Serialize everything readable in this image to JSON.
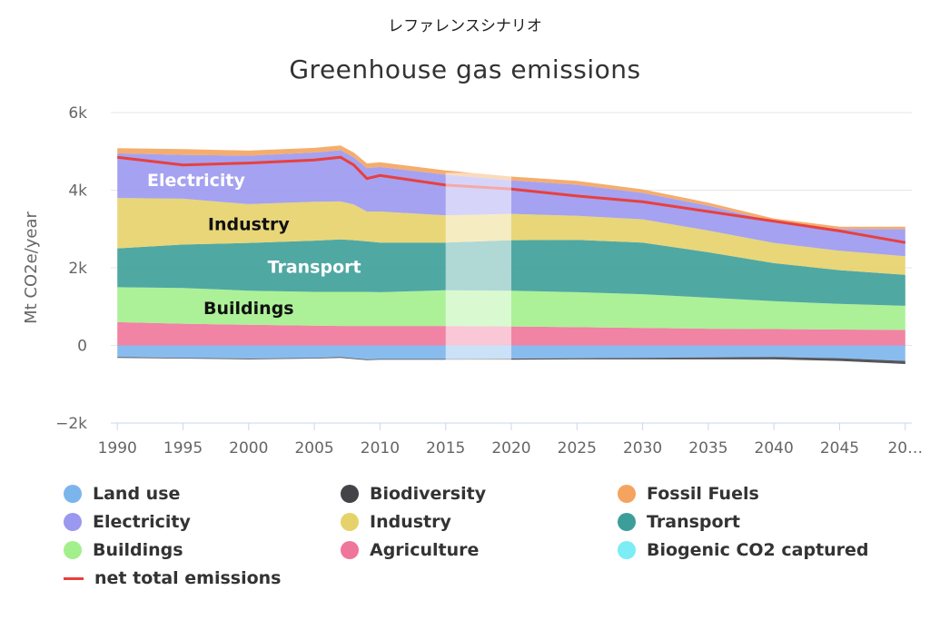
{
  "top_note": "レファレンスシナリオ",
  "chart_data": {
    "type": "area",
    "title": "Greenhouse gas emissions",
    "ylabel": "Mt CO2e/year",
    "ylim": [
      -2000,
      6000
    ],
    "y_ticks": [
      "−2k",
      "0",
      "2k",
      "4k",
      "6k"
    ],
    "y_tick_values": [
      -2000,
      0,
      2000,
      4000,
      6000
    ],
    "x_ticks": [
      "1990",
      "1995",
      "2000",
      "2005",
      "2010",
      "2015",
      "2020",
      "2025",
      "2030",
      "2035",
      "2040",
      "2045",
      "20…"
    ],
    "x_tick_values": [
      1990,
      1995,
      2000,
      2005,
      2010,
      2015,
      2020,
      2025,
      2030,
      2035,
      2040,
      2045,
      2050
    ],
    "x": [
      1990,
      1995,
      2000,
      2005,
      2007,
      2008,
      2009,
      2010,
      2015,
      2020,
      2025,
      2030,
      2035,
      2040,
      2045,
      2050
    ],
    "highlight_band": [
      2015,
      2020
    ],
    "grid": true,
    "legend_position": "bottom",
    "negative_series": [
      {
        "name": "Land use",
        "color": "#7cb5ec",
        "values": [
          -300,
          -320,
          -340,
          -320,
          -300,
          -330,
          -360,
          -350,
          -350,
          -340,
          -330,
          -320,
          -310,
          -300,
          -330,
          -400
        ]
      },
      {
        "name": "Biodiversity",
        "color": "#434348",
        "values": [
          -20,
          -20,
          -20,
          -20,
          -20,
          -20,
          -20,
          -20,
          -20,
          -30,
          -30,
          -40,
          -50,
          -60,
          -70,
          -80
        ]
      },
      {
        "name": "Biogenic CO2 captured",
        "color": "#7cecf5",
        "values": [
          0,
          0,
          0,
          0,
          0,
          0,
          0,
          0,
          0,
          0,
          0,
          0,
          0,
          0,
          0,
          0
        ]
      }
    ],
    "positive_series": [
      {
        "name": "Agriculture",
        "color": "#f0759a",
        "values": [
          600,
          560,
          530,
          510,
          500,
          500,
          500,
          500,
          500,
          490,
          470,
          450,
          430,
          420,
          410,
          400
        ]
      },
      {
        "name": "Buildings",
        "color": "#a3ef8c",
        "values": [
          900,
          920,
          880,
          870,
          880,
          880,
          880,
          870,
          920,
          920,
          900,
          870,
          800,
          720,
          660,
          620
        ]
      },
      {
        "name": "Transport",
        "color": "#3d9e99",
        "values": [
          1000,
          1120,
          1230,
          1320,
          1350,
          1330,
          1300,
          1280,
          1230,
          1300,
          1350,
          1330,
          1170,
          980,
          870,
          800
        ]
      },
      {
        "name": "Industry",
        "color": "#e6d26a",
        "values": [
          1300,
          1180,
          1000,
          1000,
          980,
          920,
          770,
          800,
          700,
          680,
          620,
          600,
          560,
          520,
          500,
          480
        ]
      },
      {
        "name": "Electricity",
        "color": "#9b98ef",
        "values": [
          1150,
          1130,
          1250,
          1270,
          1320,
          1220,
          1120,
          1150,
          1050,
          860,
          800,
          680,
          640,
          560,
          560,
          700
        ]
      },
      {
        "name": "Fossil Fuels",
        "color": "#f4a45e",
        "values": [
          130,
          150,
          130,
          120,
          120,
          120,
          120,
          120,
          110,
          100,
          100,
          90,
          80,
          70,
          60,
          60
        ]
      }
    ],
    "net_total": {
      "name": "net total emissions",
      "color": "#e8403e",
      "values": [
        4850,
        4650,
        4700,
        4780,
        4850,
        4650,
        4300,
        4380,
        4130,
        4030,
        3850,
        3700,
        3450,
        3200,
        2950,
        2650
      ]
    },
    "area_labels": [
      {
        "text": "Electricity",
        "series": "Electricity"
      },
      {
        "text": "Industry",
        "series": "Industry"
      },
      {
        "text": "Transport",
        "series": "Transport"
      },
      {
        "text": "Buildings",
        "series": "Buildings"
      }
    ]
  },
  "legend": [
    {
      "label": "Land use",
      "color": "#7cb5ec",
      "kind": "dot"
    },
    {
      "label": "Biodiversity",
      "color": "#434348",
      "kind": "dot"
    },
    {
      "label": "Fossil Fuels",
      "color": "#f4a45e",
      "kind": "dot"
    },
    {
      "label": "Electricity",
      "color": "#9b98ef",
      "kind": "dot"
    },
    {
      "label": "Industry",
      "color": "#e6d26a",
      "kind": "dot"
    },
    {
      "label": "Transport",
      "color": "#3d9e99",
      "kind": "dot"
    },
    {
      "label": "Buildings",
      "color": "#a3ef8c",
      "kind": "dot"
    },
    {
      "label": "Agriculture",
      "color": "#f0759a",
      "kind": "dot"
    },
    {
      "label": "Biogenic CO2 captured",
      "color": "#7cecf5",
      "kind": "dot"
    },
    {
      "label": "net total emissions",
      "color": "#e8403e",
      "kind": "line"
    }
  ]
}
